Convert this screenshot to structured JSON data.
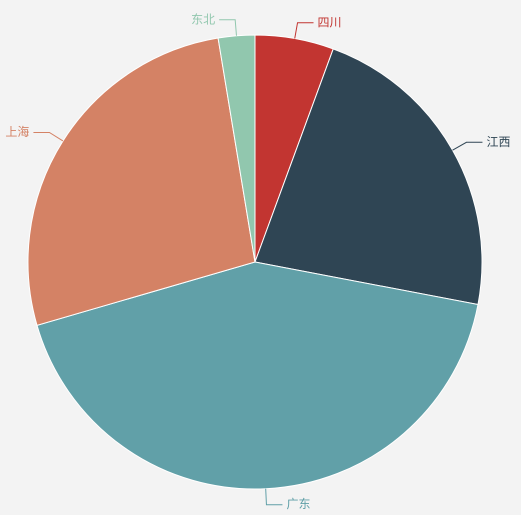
{
  "chart_data": {
    "type": "pie",
    "categories": [
      "四川",
      "江西",
      "广东",
      "上海",
      "东北"
    ],
    "values": [
      5.6,
      22.4,
      42.5,
      26.9,
      2.6
    ],
    "colors": [
      "#c23531",
      "#2f4554",
      "#61a0a8",
      "#d48265",
      "#91c7ae"
    ]
  }
}
